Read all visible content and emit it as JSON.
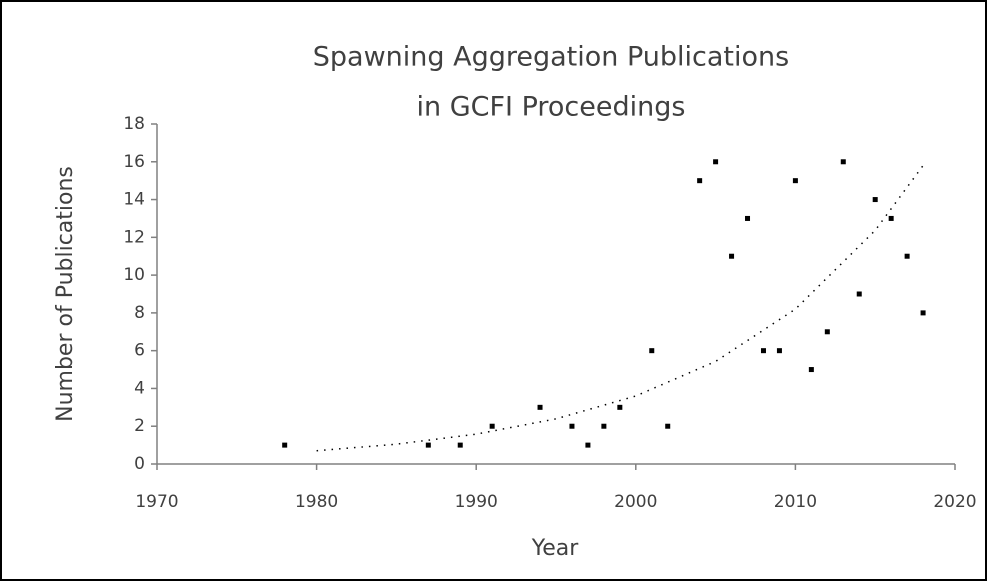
{
  "chart_data": {
    "type": "scatter",
    "title": [
      "Spawning Aggregation Publications",
      "in GCFI Proceedings"
    ],
    "x_label": "Year",
    "y_label": "Number of Publications",
    "x": [
      1978,
      1987,
      1989,
      1991,
      1994,
      1996,
      1997,
      1998,
      1999,
      2001,
      2002,
      2004,
      2005,
      2006,
      2007,
      2008,
      2009,
      2010,
      2011,
      2012,
      2013,
      2014,
      2015,
      2016,
      2017,
      2018
    ],
    "values": [
      1,
      1,
      1,
      2,
      3,
      2,
      1,
      2,
      3,
      6,
      2,
      15,
      16,
      11,
      13,
      6,
      6,
      15,
      5,
      7,
      16,
      9,
      14,
      13,
      11,
      8
    ],
    "color": "#000000",
    "trendline": {
      "type": "exponential",
      "x": [
        1980,
        1985,
        1990,
        1995,
        2000,
        2005,
        2010,
        2015,
        2018
      ],
      "values": [
        0.7,
        1.05,
        1.58,
        2.39,
        3.6,
        5.43,
        8.2,
        12.37,
        15.8
      ]
    },
    "xlim": [
      1970,
      2020
    ],
    "xticks": [
      1970,
      1980,
      1990,
      2000,
      2010,
      2020
    ],
    "ylim": [
      0,
      18
    ],
    "yticks": [
      0,
      2,
      4,
      6,
      8,
      10,
      12,
      14,
      16,
      18
    ],
    "grid": false
  }
}
